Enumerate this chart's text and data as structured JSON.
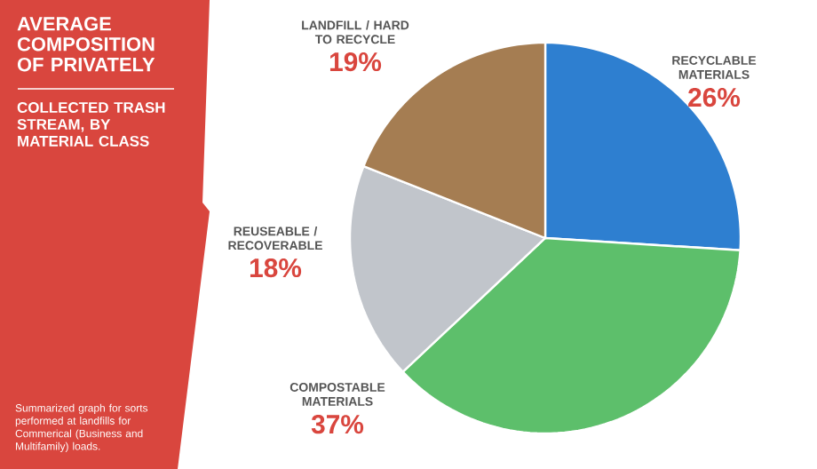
{
  "chart_data": {
    "type": "pie",
    "title": "AVERAGE COMPOSITION OF PRIVATELY",
    "subtitle": "COLLECTED TRASH STREAM, BY MATERIAL CLASS",
    "annotations": [
      "Summarized graph for sorts performed at landfills for Commerical (Business and Multifamily) loads."
    ],
    "categories": [
      "RECYCLABLE MATERIALS",
      "COMPOSTABLE MATERIALS",
      "REUSEABLE / RECOVERABLE",
      "LANDFILL / HARD TO RECYCLE"
    ],
    "values": [
      26,
      37,
      18,
      19
    ],
    "colors": [
      "#2e7fd0",
      "#5dbf6b",
      "#c1c5cb",
      "#a57d52"
    ],
    "value_labels": [
      "26%",
      "37%",
      "18%",
      "19%"
    ]
  }
}
